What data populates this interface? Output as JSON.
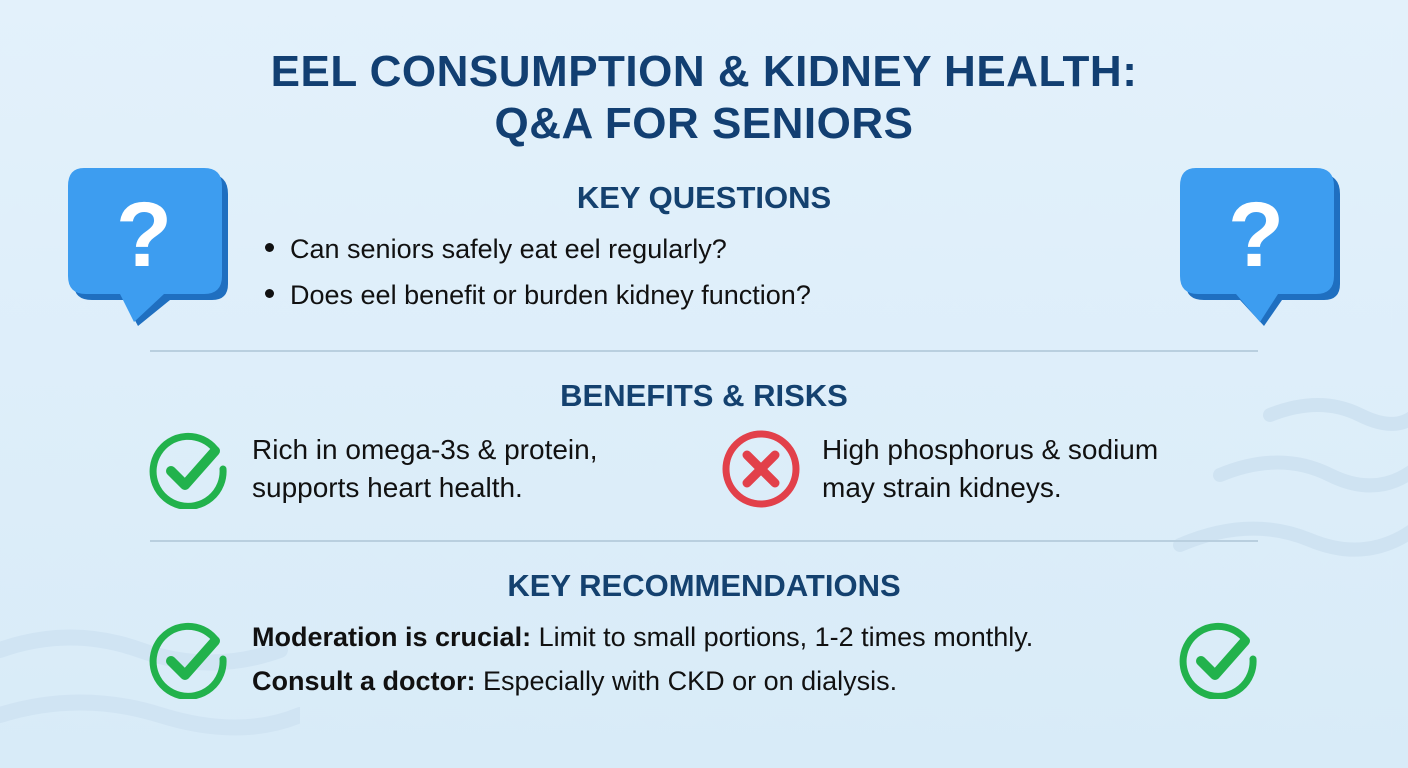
{
  "title": {
    "line1": "EEL CONSUMPTION & KIDNEY HEALTH:",
    "line2": "Q&A FOR SENIORS"
  },
  "colors": {
    "navy": "#123f72",
    "bubble_blue": "#3d9df0",
    "check_green": "#22b24c",
    "cross_red": "#e2404a",
    "background": "#dcedf9"
  },
  "questions": {
    "heading": "KEY QUESTIONS",
    "items": [
      "Can seniors safely eat eel regularly?",
      "Does eel benefit or burden kidney function?"
    ],
    "icon": "question-speech-bubble-icon"
  },
  "benefits_risks": {
    "heading": "BENEFITS & RISKS",
    "benefit": {
      "icon": "check-circle-icon",
      "line1": "Rich in omega-3s & protein,",
      "line2": "supports heart health."
    },
    "risk": {
      "icon": "x-circle-icon",
      "line1": "High phosphorus & sodium",
      "line2": "may strain kidneys."
    }
  },
  "recommendations": {
    "heading": "KEY RECOMMENDATIONS",
    "items": [
      {
        "bold": "Moderation is crucial:",
        "text": " Limit to small portions, 1-2 times monthly."
      },
      {
        "bold": "Consult a doctor:",
        "text": " Especially with CKD or on dialysis."
      }
    ],
    "icon": "check-circle-icon"
  }
}
